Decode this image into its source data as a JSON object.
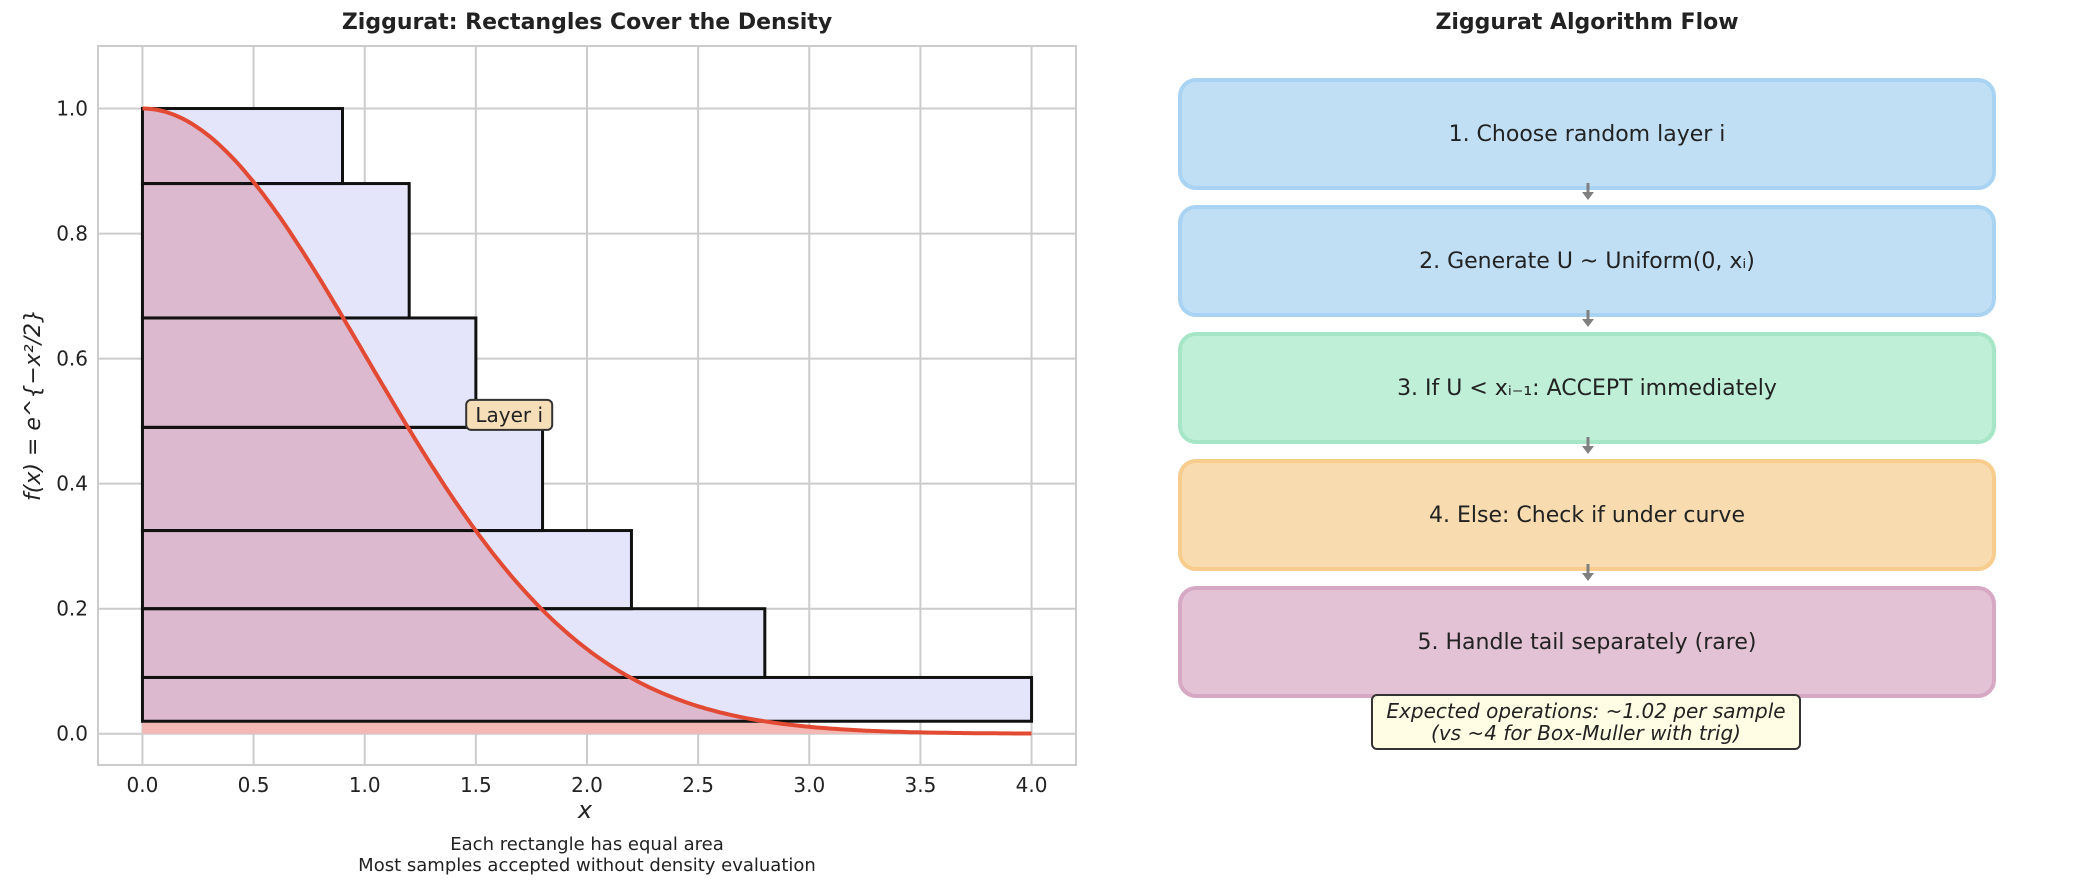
{
  "left_panel": {
    "title": "Ziggurat: Rectangles Cover the Density",
    "caption_line1": "Each rectangle has equal area",
    "caption_line2": "Most samples accepted without density evaluation"
  },
  "right_panel": {
    "title": "Ziggurat Algorithm Flow",
    "steps": [
      {
        "label": "1. Choose random layer i",
        "fill": "#c0dff4",
        "border": "#a9d3f2"
      },
      {
        "label": "2. Generate U ~ Uniform(0, xᵢ)",
        "fill": "#c0dff4",
        "border": "#a9d3f2"
      },
      {
        "label": "3. If U < xᵢ₋₁: ACCEPT immediately",
        "fill": "#c0efd8",
        "border": "#a6e6c6"
      },
      {
        "label": "4. Else: Check if under curve",
        "fill": "#f8dcb0",
        "border": "#f7cc8d"
      },
      {
        "label": "5. Handle tail separately (rare)",
        "fill": "#e2c2d4",
        "border": "#d7a8c3"
      }
    ],
    "note_line1": "Expected operations: ~1.02 per sample",
    "note_line2": "(vs ~4 for Box-Muller with trig)",
    "arrow_color": "#808080"
  },
  "chart_data": {
    "type": "area",
    "title": "Ziggurat: Rectangles Cover the Density",
    "xlabel": "x",
    "ylabel": "f(x) = e^{−x²/2}",
    "xlim": [
      -0.2,
      4.2
    ],
    "ylim": [
      -0.05,
      1.1
    ],
    "xticks": [
      "0.0",
      "0.5",
      "1.0",
      "1.5",
      "2.0",
      "2.5",
      "3.0",
      "3.5",
      "4.0"
    ],
    "yticks": [
      "0.0",
      "0.2",
      "0.4",
      "0.6",
      "0.8",
      "1.0"
    ],
    "grid": true,
    "curve": {
      "function": "exp(-x^2/2)",
      "x_range": [
        0,
        4
      ],
      "color": "#e34a33"
    },
    "layers": [
      {
        "x_max": 4.0,
        "y_bottom": 0.02,
        "y_top": 0.09
      },
      {
        "x_max": 2.8,
        "y_bottom": 0.09,
        "y_top": 0.2
      },
      {
        "x_max": 2.2,
        "y_bottom": 0.2,
        "y_top": 0.325
      },
      {
        "x_max": 1.8,
        "y_bottom": 0.325,
        "y_top": 0.49
      },
      {
        "x_max": 1.5,
        "y_bottom": 0.49,
        "y_top": 0.665
      },
      {
        "x_max": 1.2,
        "y_bottom": 0.665,
        "y_top": 0.88
      },
      {
        "x_max": 0.9,
        "y_bottom": 0.88,
        "y_top": 1.0
      }
    ],
    "annotation": {
      "text": "Layer i",
      "x": 1.65,
      "y": 0.51
    },
    "colors": {
      "rect_fill": "#e4e4fb",
      "curve_fill": "#dcb2c8",
      "base_fill": "#f3b8b4",
      "grid": "#cccccc"
    }
  }
}
